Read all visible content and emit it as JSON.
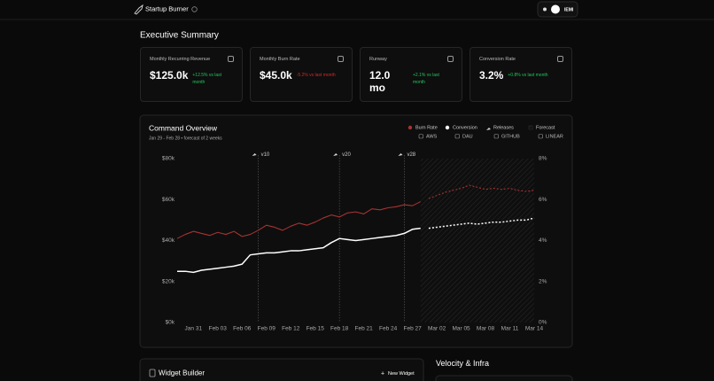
{
  "header": {
    "app_name": "Startup Burner",
    "user": "IEMI"
  },
  "summary": {
    "title": "Executive Summary",
    "cards": [
      {
        "label": "Monthly Recurring Revenue",
        "value": "$125.0k",
        "change": "+12.5% vs last month",
        "color": "#22c55e"
      },
      {
        "label": "Monthly Burn Rate",
        "value": "$45.0k",
        "change": "-5.2% vs last month",
        "color": "#dc2626"
      },
      {
        "label": "Runway",
        "value": "12.0 mo",
        "change": "+2.1% vs last month",
        "color": "#22c55e"
      },
      {
        "label": "Conversion Rate",
        "value": "3.2%",
        "change": "+0.8% vs last month",
        "color": "#22c55e"
      }
    ]
  },
  "chart_data": {
    "type": "line",
    "title": "Command Overview",
    "subtitle": "Jan 29 - Feb 28 • forecast of 2 weeks",
    "x": [
      null,
      null,
      "Jan 31",
      null,
      null,
      "Feb 03",
      null,
      null,
      "Feb 06",
      null,
      null,
      "Feb 09",
      null,
      null,
      "Feb 12",
      null,
      null,
      "Feb 15",
      null,
      null,
      "Feb 18",
      null,
      null,
      "Feb 21",
      null,
      null,
      "Feb 24",
      null,
      null,
      "Feb 27",
      null,
      null,
      "Mar 02",
      null,
      null,
      "Mar 05",
      null,
      null,
      "Mar 08",
      null,
      null,
      "Mar 11",
      null,
      null,
      "Mar 14"
    ],
    "series": [
      {
        "name": "Burn Rate",
        "color": "#a83232",
        "axis": "y",
        "values": [
          41000,
          43000,
          44500,
          43500,
          42500,
          44000,
          43000,
          44500,
          42000,
          43000,
          45000,
          47500,
          46500,
          45000,
          47000,
          48500,
          47500,
          49000,
          51000,
          52500,
          51500,
          53500,
          54000,
          53000,
          55500,
          55000,
          56000,
          56500,
          57500,
          57000,
          59000,
          null,
          null,
          null,
          null,
          null,
          null,
          null,
          null,
          null,
          null,
          null,
          null,
          null,
          null
        ],
        "forecast_values": [
          null,
          null,
          null,
          null,
          null,
          null,
          null,
          null,
          null,
          null,
          null,
          null,
          null,
          null,
          null,
          null,
          null,
          null,
          null,
          null,
          null,
          null,
          null,
          null,
          null,
          null,
          null,
          null,
          null,
          null,
          null,
          60500,
          62000,
          63500,
          64500,
          65500,
          67000,
          66000,
          65000,
          65500,
          65000,
          65500,
          64500,
          64000,
          64500
        ]
      },
      {
        "name": "Conversion",
        "color": "#ffffff",
        "axis": "y2",
        "values": [
          2.5,
          2.5,
          2.45,
          2.55,
          2.6,
          2.65,
          2.7,
          2.75,
          2.85,
          3.3,
          3.35,
          3.4,
          3.4,
          3.45,
          3.5,
          3.5,
          3.55,
          3.6,
          3.65,
          3.9,
          4.1,
          4.05,
          4.0,
          4.05,
          4.1,
          4.15,
          4.2,
          4.25,
          4.35,
          4.55,
          4.6,
          null,
          null,
          null,
          null,
          null,
          null,
          null,
          null,
          null,
          null,
          null,
          null,
          null,
          null
        ],
        "forecast_values": [
          null,
          null,
          null,
          null,
          null,
          null,
          null,
          null,
          null,
          null,
          null,
          null,
          null,
          null,
          null,
          null,
          null,
          null,
          null,
          null,
          null,
          null,
          null,
          null,
          null,
          null,
          null,
          null,
          null,
          null,
          null,
          4.6,
          4.65,
          4.7,
          4.75,
          4.8,
          4.85,
          4.8,
          4.85,
          4.9,
          4.9,
          4.95,
          5.0,
          5.0,
          5.1
        ]
      },
      {
        "name": "Releases",
        "color": "#d4d4d4",
        "labels": [
          null,
          null,
          null,
          null,
          null,
          null,
          null,
          null,
          null,
          null,
          "v10",
          null,
          null,
          null,
          null,
          null,
          null,
          null,
          null,
          null,
          "v20",
          null,
          null,
          null,
          null,
          null,
          null,
          null,
          "v28",
          null,
          null,
          null,
          null,
          null,
          null,
          null,
          null,
          null,
          null,
          null,
          null,
          null,
          null,
          null,
          null
        ]
      }
    ],
    "forecast_label": "Forecast",
    "integrations": [
      "AWS",
      "DAU",
      "GITHUB",
      "LINEAR"
    ],
    "ylim": [
      0,
      80000
    ],
    "yticks": [
      {
        "value": 0,
        "label": "$0k"
      },
      {
        "value": 20000,
        "label": "$20k"
      },
      {
        "value": 40000,
        "label": "$40k"
      },
      {
        "value": 60000,
        "label": "$60k"
      },
      {
        "value": 80000,
        "label": "$80k"
      }
    ],
    "y2lim": [
      0,
      8
    ],
    "y2ticks": [
      {
        "value": 0,
        "label": "0%"
      },
      {
        "value": 2,
        "label": "2%"
      },
      {
        "value": 4,
        "label": "4%"
      },
      {
        "value": 6,
        "label": "6%"
      },
      {
        "value": 8,
        "label": "8%"
      }
    ],
    "grid": false
  },
  "widget_builder": {
    "title": "Widget Builder",
    "button": "New Widget"
  },
  "velocity": {
    "title": "Velocity & Infra"
  }
}
